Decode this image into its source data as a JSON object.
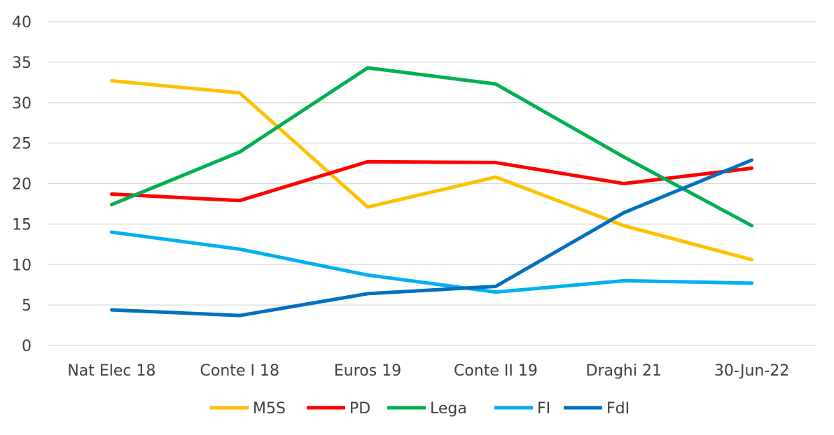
{
  "chart_data": {
    "type": "line",
    "title": "",
    "xlabel": "",
    "ylabel": "",
    "ylim": [
      0,
      40
    ],
    "yticks": [
      0,
      5,
      10,
      15,
      20,
      25,
      30,
      35,
      40
    ],
    "grid": true,
    "legend_position": "bottom",
    "categories": [
      "Nat Elec 18",
      "Conte I 18",
      "Euros 19",
      "Conte II 19",
      "Draghi 21",
      "30-Jun-22"
    ],
    "series": [
      {
        "name": "M5S",
        "color": "#FFC000",
        "values": [
          32.7,
          31.2,
          17.1,
          20.8,
          14.8,
          10.6
        ]
      },
      {
        "name": "PD",
        "color": "#FF0000",
        "values": [
          18.7,
          17.9,
          22.7,
          22.6,
          20.0,
          21.9
        ]
      },
      {
        "name": "Lega",
        "color": "#00B050",
        "values": [
          17.4,
          23.9,
          34.3,
          32.3,
          23.3,
          14.8
        ]
      },
      {
        "name": "FI",
        "color": "#00B0F0",
        "values": [
          14.0,
          11.9,
          8.7,
          6.6,
          8.0,
          7.7
        ]
      },
      {
        "name": "FdI",
        "color": "#0070C0",
        "values": [
          4.4,
          3.7,
          6.4,
          7.3,
          16.4,
          22.9
        ]
      }
    ]
  }
}
